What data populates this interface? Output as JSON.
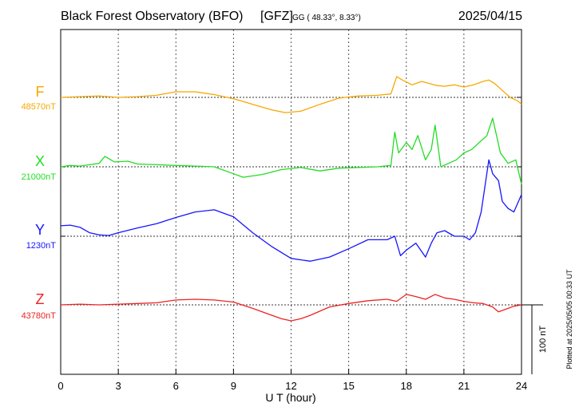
{
  "chart_data": {
    "type": "line",
    "title": "Black Forest Observatory (BFO)",
    "title_tag": "[GFZ]",
    "coords_label": "GG ( 48.33°,   8.33°)",
    "date": "2025/04/15",
    "xlabel": "U T (hour)",
    "xlim": [
      0,
      24
    ],
    "x_ticks": [
      0,
      3,
      6,
      9,
      12,
      15,
      18,
      21,
      24
    ],
    "grid": true,
    "scale_label": "100 nT",
    "scale_nT": 100,
    "plotted_note": "Plotted at 2025/05/05 00:33 UT",
    "series": [
      {
        "name": "F",
        "baseline_label": "48570nT",
        "baseline_nT": 48570,
        "color": "#f5a800",
        "x": [
          0,
          1,
          2,
          3,
          4,
          5,
          6,
          7,
          8,
          9,
          10,
          11,
          11.7,
          12.5,
          13.5,
          14.5,
          15.5,
          16.5,
          17.2,
          17.5,
          17.8,
          18.3,
          18.8,
          19.2,
          19.6,
          20,
          20.5,
          21,
          21.5,
          22,
          22.3,
          22.6,
          23,
          23.4,
          23.8,
          24
        ],
        "values": [
          0,
          1,
          2,
          0,
          1,
          3,
          8,
          8,
          4,
          -2,
          -10,
          -18,
          -22,
          -20,
          -10,
          -1,
          2,
          3,
          5,
          30,
          25,
          18,
          23,
          20,
          17,
          16,
          18,
          15,
          18,
          23,
          25,
          20,
          10,
          0,
          -5,
          -10
        ]
      },
      {
        "name": "X",
        "baseline_label": "21000nT",
        "baseline_nT": 21000,
        "color": "#22dd22",
        "x": [
          0,
          0.5,
          1,
          1.5,
          2,
          2.3,
          2.8,
          3.5,
          4,
          5,
          6,
          7,
          8,
          9,
          9.5,
          10.5,
          11.5,
          12.5,
          13.5,
          14.5,
          15.5,
          16.5,
          17.2,
          17.4,
          17.6,
          18,
          18.3,
          18.6,
          19,
          19.3,
          19.5,
          19.8,
          20.2,
          20.6,
          21,
          21.4,
          21.8,
          22.2,
          22.5,
          22.9,
          23.3,
          23.7,
          24
        ],
        "values": [
          0,
          2,
          1,
          3,
          5,
          15,
          7,
          8,
          4,
          3,
          2,
          1,
          0,
          -10,
          -15,
          -11,
          -4,
          -1,
          -6,
          -2,
          -1,
          0,
          2,
          50,
          20,
          35,
          25,
          45,
          10,
          25,
          60,
          0,
          5,
          10,
          20,
          25,
          35,
          45,
          70,
          20,
          5,
          10,
          -25
        ]
      },
      {
        "name": "Y",
        "baseline_label": "1230nT",
        "baseline_nT": 1230,
        "color": "#1515ff",
        "x": [
          0,
          0.5,
          1,
          1.5,
          2,
          2.5,
          3,
          4,
          5,
          6,
          7,
          8,
          9,
          10,
          11,
          12,
          13,
          14,
          15,
          16,
          17,
          17.4,
          17.7,
          18,
          18.5,
          19,
          19.3,
          19.6,
          20,
          20.5,
          21,
          21.3,
          21.6,
          21.9,
          22.3,
          22.5,
          22.8,
          23,
          23.3,
          23.6,
          24
        ],
        "values": [
          15,
          16,
          13,
          5,
          2,
          1,
          5,
          12,
          18,
          27,
          35,
          38,
          28,
          5,
          -15,
          -32,
          -36,
          -30,
          -18,
          -5,
          -5,
          0,
          -28,
          -20,
          -10,
          -30,
          -10,
          5,
          8,
          0,
          0,
          -5,
          5,
          35,
          110,
          90,
          80,
          50,
          40,
          35,
          60
        ]
      },
      {
        "name": "Z",
        "baseline_label": "43780nT",
        "baseline_nT": 43780,
        "color": "#ee2222",
        "x": [
          0,
          1,
          2,
          3,
          4,
          5,
          6,
          7,
          8,
          9,
          10,
          11,
          11.5,
          12,
          12.5,
          13,
          14,
          15,
          16,
          17,
          17.5,
          18,
          18.5,
          19,
          19.5,
          20,
          20.5,
          21,
          21.5,
          22,
          22.5,
          22.8,
          23,
          23.3,
          23.6,
          24
        ],
        "values": [
          0,
          1,
          0,
          1,
          2,
          3,
          7,
          8,
          7,
          4,
          -5,
          -15,
          -20,
          -23,
          -20,
          -15,
          -3,
          2,
          6,
          8,
          5,
          15,
          12,
          8,
          15,
          10,
          8,
          5,
          3,
          2,
          -3,
          -10,
          -8,
          -5,
          -2,
          0
        ]
      }
    ]
  }
}
